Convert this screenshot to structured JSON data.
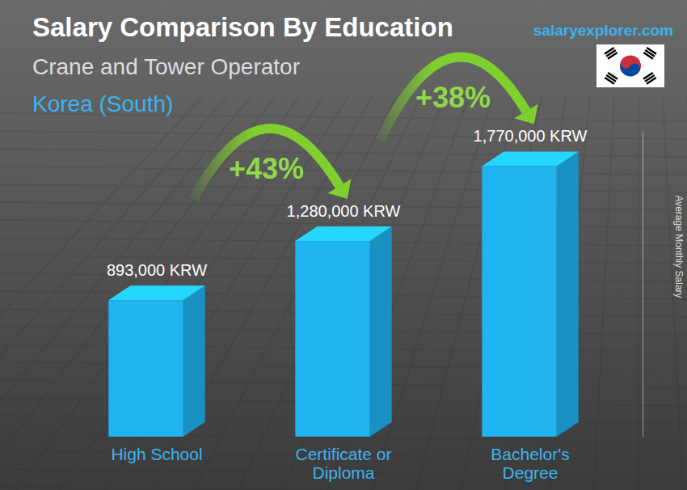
{
  "chart_data": {
    "type": "bar",
    "title": "Salary Comparison By Education",
    "subtitle": [
      "Crane and Tower Operator",
      "Korea (South)"
    ],
    "ylabel": "Average Monthly Salary",
    "watermark": "salaryexplorer.com",
    "categories": [
      "High School",
      "Certificate or Diploma",
      "Bachelor's Degree"
    ],
    "values": [
      893000,
      1280000,
      1770000
    ],
    "value_labels": [
      "893,000 KRW",
      "1,280,000 KRW",
      "1,770,000 KRW"
    ],
    "data_labels": true,
    "color": "#1fb3f0",
    "annotations": [
      "+43%",
      "+38%"
    ],
    "ylim": [
      0,
      2000000
    ],
    "yticks": [],
    "grid": false,
    "tick_labels": "x"
  }
}
